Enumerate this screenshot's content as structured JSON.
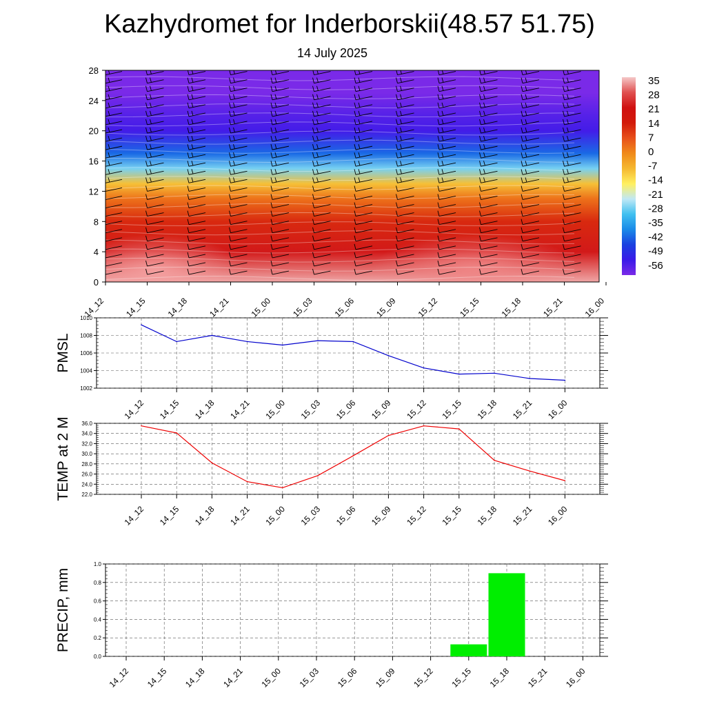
{
  "header": {
    "title": "Kazhydromet for Inderborskii(48.57 51.75)",
    "date": "14 July 2025"
  },
  "chart_data": [
    {
      "type": "heatmap",
      "name": "temperature-wind-cross-section",
      "x_tick_labels": [
        "14_12",
        "14_15",
        "14_18",
        "14_21",
        "15_00",
        "15_03",
        "15_06",
        "15_09",
        "15_12",
        "15_15",
        "15_18",
        "15_21",
        "16_00"
      ],
      "y_ticks": [
        0,
        4,
        8,
        12,
        16,
        20,
        24,
        28
      ],
      "ylim": [
        0,
        28
      ],
      "colorbar_labels": [
        "35",
        "28",
        "21",
        "14",
        "7",
        "0",
        "-7",
        "-14",
        "-21",
        "-28",
        "-35",
        "-42",
        "-49",
        "-56"
      ],
      "colorbar_stops": [
        "#f5c8c8",
        "#e05050",
        "#d01010",
        "#d21a0a",
        "#e8501a",
        "#f08a1a",
        "#f5b830",
        "#fff060",
        "#c0e8f5",
        "#40c0f0",
        "#1a8ae8",
        "#1a40e0",
        "#3a1ae8",
        "#7a2ae8"
      ],
      "layers": [
        {
          "alt": 0,
          "temp": 33
        },
        {
          "alt": 4,
          "temp": 22
        },
        {
          "alt": 8,
          "temp": 12
        },
        {
          "alt": 11,
          "temp": 3
        },
        {
          "alt": 13,
          "temp": -8
        },
        {
          "alt": 15,
          "temp": -25
        },
        {
          "alt": 17,
          "temp": -38
        },
        {
          "alt": 20,
          "temp": -50
        },
        {
          "alt": 22,
          "temp": -52
        },
        {
          "alt": 25,
          "temp": -57
        },
        {
          "alt": 28,
          "temp": -60
        }
      ]
    },
    {
      "type": "line",
      "ylabel": "PMSL",
      "ylim": [
        1002,
        1010
      ],
      "y_ticks": [
        "1002",
        "1004",
        "1006",
        "1008",
        "1010"
      ],
      "categories": [
        "14_12",
        "14_15",
        "14_18",
        "14_21",
        "15_00",
        "15_03",
        "15_06",
        "15_09",
        "15_12",
        "15_15",
        "15_18",
        "15_21",
        "16_00"
      ],
      "values": [
        1009.2,
        1007.3,
        1008.0,
        1007.3,
        1006.9,
        1007.4,
        1007.3,
        1005.7,
        1004.3,
        1003.6,
        1003.7,
        1003.1,
        1002.9
      ],
      "color": "#0000cc"
    },
    {
      "type": "line",
      "ylabel": "TEMP at 2 M",
      "ylim": [
        22.0,
        36.0
      ],
      "y_ticks": [
        "22.0",
        "24.0",
        "26.0",
        "28.0",
        "30.0",
        "32.0",
        "34.0",
        "36.0"
      ],
      "categories": [
        "14_12",
        "14_15",
        "14_18",
        "14_21",
        "15_00",
        "15_03",
        "15_06",
        "15_09",
        "15_12",
        "15_15",
        "15_18",
        "15_21",
        "16_00"
      ],
      "values": [
        35.5,
        34.1,
        28.2,
        24.5,
        23.3,
        25.7,
        29.6,
        33.6,
        35.5,
        34.9,
        28.7,
        26.6,
        24.7
      ],
      "color": "#ee0000"
    },
    {
      "type": "bar",
      "ylabel": "PRECIP, mm",
      "ylim": [
        0.0,
        1.0
      ],
      "y_ticks": [
        "0.0",
        "0.2",
        "0.4",
        "0.6",
        "0.8",
        "1.0"
      ],
      "categories": [
        "14_12",
        "14_15",
        "14_18",
        "14_21",
        "15_00",
        "15_03",
        "15_06",
        "15_09",
        "15_12",
        "15_15",
        "15_18",
        "15_21",
        "16_00"
      ],
      "values": [
        0,
        0,
        0,
        0,
        0,
        0,
        0,
        0,
        0,
        0.13,
        0.9,
        0,
        0
      ],
      "color": "#00ee00"
    }
  ]
}
